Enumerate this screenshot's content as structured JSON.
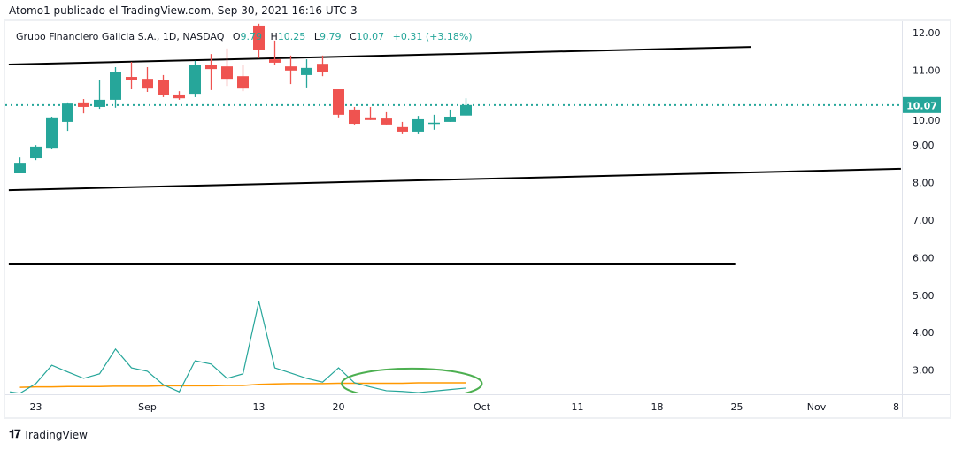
{
  "publish_line": "Atomo1 publicado el TradingView.com, Sep 30, 2021 16:16 UTC-3",
  "legend": {
    "symbol": "Grupo Financiero Galicia S.A., 1D, NASDAQ",
    "o_label": "O",
    "o_value": "9.79",
    "h_label": "H",
    "h_value": "10.25",
    "l_label": "L",
    "l_value": "9.79",
    "c_label": "C",
    "c_value": "10.07",
    "change": "+0.31 (+3.18%)"
  },
  "footer": {
    "logo": "TV",
    "brand": "TradingView"
  },
  "colors": {
    "up": "#26a69a",
    "down": "#ef5350",
    "line": "#26a69a",
    "ma": "#ff9800",
    "ellipse": "#4caf50",
    "last_price_bg": "#26a69a"
  },
  "chart_data": {
    "type": "candlestick",
    "price_axis": {
      "ticks": [
        "12.00",
        "11.00",
        "10.00",
        "9.00",
        "8.00",
        "7.00",
        "6.00",
        "5.00",
        "4.00",
        "3.00"
      ],
      "range": [
        2.2,
        12.2
      ]
    },
    "last_price": "10.07",
    "time_axis": [
      {
        "label": "23",
        "bar_index": 1
      },
      {
        "label": "Sep",
        "bar_index": 8
      },
      {
        "label": "13",
        "bar_index": 15
      },
      {
        "label": "20",
        "bar_index": 20
      },
      {
        "label": "Oct",
        "bar_index": 29
      },
      {
        "label": "11",
        "bar_index": 35
      },
      {
        "label": "18",
        "bar_index": 40
      },
      {
        "label": "25",
        "bar_index": 45
      },
      {
        "label": "Nov",
        "bar_index": 50
      },
      {
        "label": "8",
        "bar_index": 55
      }
    ],
    "candles": [
      {
        "date": "Aug 20",
        "o": 8.25,
        "h": 8.67,
        "l": 8.25,
        "c": 8.53
      },
      {
        "date": "Aug 23",
        "o": 8.65,
        "h": 9.0,
        "l": 8.6,
        "c": 8.96
      },
      {
        "date": "Aug 24",
        "o": 8.93,
        "h": 9.76,
        "l": 8.91,
        "c": 9.74
      },
      {
        "date": "Aug 25",
        "o": 9.62,
        "h": 10.14,
        "l": 9.38,
        "c": 10.11
      },
      {
        "date": "Aug 26",
        "o": 10.14,
        "h": 10.23,
        "l": 9.85,
        "c": 10.02
      },
      {
        "date": "Aug 27",
        "o": 10.02,
        "h": 10.73,
        "l": 9.97,
        "c": 10.21
      },
      {
        "date": "Aug 30",
        "o": 10.21,
        "h": 11.08,
        "l": 10.0,
        "c": 10.96
      },
      {
        "date": "Aug 31",
        "o": 10.82,
        "h": 11.22,
        "l": 10.49,
        "c": 10.75
      },
      {
        "date": "Sep 1",
        "o": 10.77,
        "h": 11.08,
        "l": 10.42,
        "c": 10.51
      },
      {
        "date": "Sep 2",
        "o": 10.73,
        "h": 10.87,
        "l": 10.28,
        "c": 10.33
      },
      {
        "date": "Sep 3",
        "o": 10.35,
        "h": 10.44,
        "l": 10.21,
        "c": 10.25
      },
      {
        "date": "Sep 7",
        "o": 10.37,
        "h": 11.25,
        "l": 10.28,
        "c": 11.15
      },
      {
        "date": "Sep 8",
        "o": 11.15,
        "h": 11.43,
        "l": 10.47,
        "c": 11.03
      },
      {
        "date": "Sep 9",
        "o": 11.1,
        "h": 11.58,
        "l": 10.58,
        "c": 10.77
      },
      {
        "date": "Sep 10",
        "o": 10.84,
        "h": 11.13,
        "l": 10.44,
        "c": 10.51
      },
      {
        "date": "Sep 13",
        "o": 12.19,
        "h": 12.24,
        "l": 11.32,
        "c": 11.53
      },
      {
        "date": "Sep 14",
        "o": 11.29,
        "h": 11.79,
        "l": 11.15,
        "c": 11.2
      },
      {
        "date": "Sep 15",
        "o": 11.1,
        "h": 11.39,
        "l": 10.63,
        "c": 10.99
      },
      {
        "date": "Sep 16",
        "o": 10.87,
        "h": 11.29,
        "l": 10.54,
        "c": 11.06
      },
      {
        "date": "Sep 17",
        "o": 11.17,
        "h": 11.39,
        "l": 10.84,
        "c": 10.94
      },
      {
        "date": "Sep 20",
        "o": 10.49,
        "h": 10.49,
        "l": 9.74,
        "c": 9.81
      },
      {
        "date": "Sep 21",
        "o": 9.95,
        "h": 10.02,
        "l": 9.55,
        "c": 9.57
      },
      {
        "date": "Sep 22",
        "o": 9.74,
        "h": 10.02,
        "l": 9.67,
        "c": 9.67
      },
      {
        "date": "Sep 23",
        "o": 9.71,
        "h": 9.88,
        "l": 9.55,
        "c": 9.55
      },
      {
        "date": "Sep 24",
        "o": 9.48,
        "h": 9.62,
        "l": 9.29,
        "c": 9.36
      },
      {
        "date": "Sep 27",
        "o": 9.36,
        "h": 9.78,
        "l": 9.29,
        "c": 9.69
      },
      {
        "date": "Sep 28",
        "o": 9.58,
        "h": 9.81,
        "l": 9.41,
        "c": 9.6
      },
      {
        "date": "Sep 29",
        "o": 9.62,
        "h": 9.95,
        "l": 9.62,
        "c": 9.76
      },
      {
        "date": "Sep 30",
        "o": 9.79,
        "h": 10.25,
        "l": 9.79,
        "c": 10.07
      }
    ],
    "indicator_line": [
      2.38,
      2.64,
      3.13,
      2.95,
      2.78,
      2.9,
      3.56,
      3.06,
      2.97,
      2.61,
      2.42,
      3.25,
      3.16,
      2.78,
      2.9,
      4.83,
      3.06,
      2.92,
      2.78,
      2.68,
      3.06,
      2.66,
      2.55,
      2.45,
      2.43,
      2.4,
      2.44,
      2.48,
      2.52
    ],
    "indicator_ma": [
      2.54,
      2.55,
      2.55,
      2.56,
      2.56,
      2.56,
      2.57,
      2.57,
      2.57,
      2.58,
      2.58,
      2.58,
      2.58,
      2.59,
      2.59,
      2.62,
      2.63,
      2.64,
      2.64,
      2.64,
      2.65,
      2.65,
      2.65,
      2.65,
      2.65,
      2.66,
      2.66,
      2.66,
      2.66
    ],
    "drawings": {
      "upper_trendline": {
        "from": {
          "bar_index": -0.7,
          "price": 11.15
        },
        "to": {
          "bar_index": 45.9,
          "price": 11.62
        }
      },
      "lower_trendline": {
        "from": {
          "bar_index": -0.7,
          "price": 7.8
        },
        "to": {
          "bar_index": 55.3,
          "price": 8.37
        }
      },
      "horizontal_line": {
        "from": {
          "bar_index": -0.7,
          "price": 5.82
        },
        "to": {
          "bar_index": 44.9,
          "price": 5.82
        }
      },
      "ellipse": {
        "center": {
          "bar_index": 24.6,
          "price": 2.64
        },
        "rx_bars": 4.4,
        "ry_price": 0.4
      }
    }
  }
}
